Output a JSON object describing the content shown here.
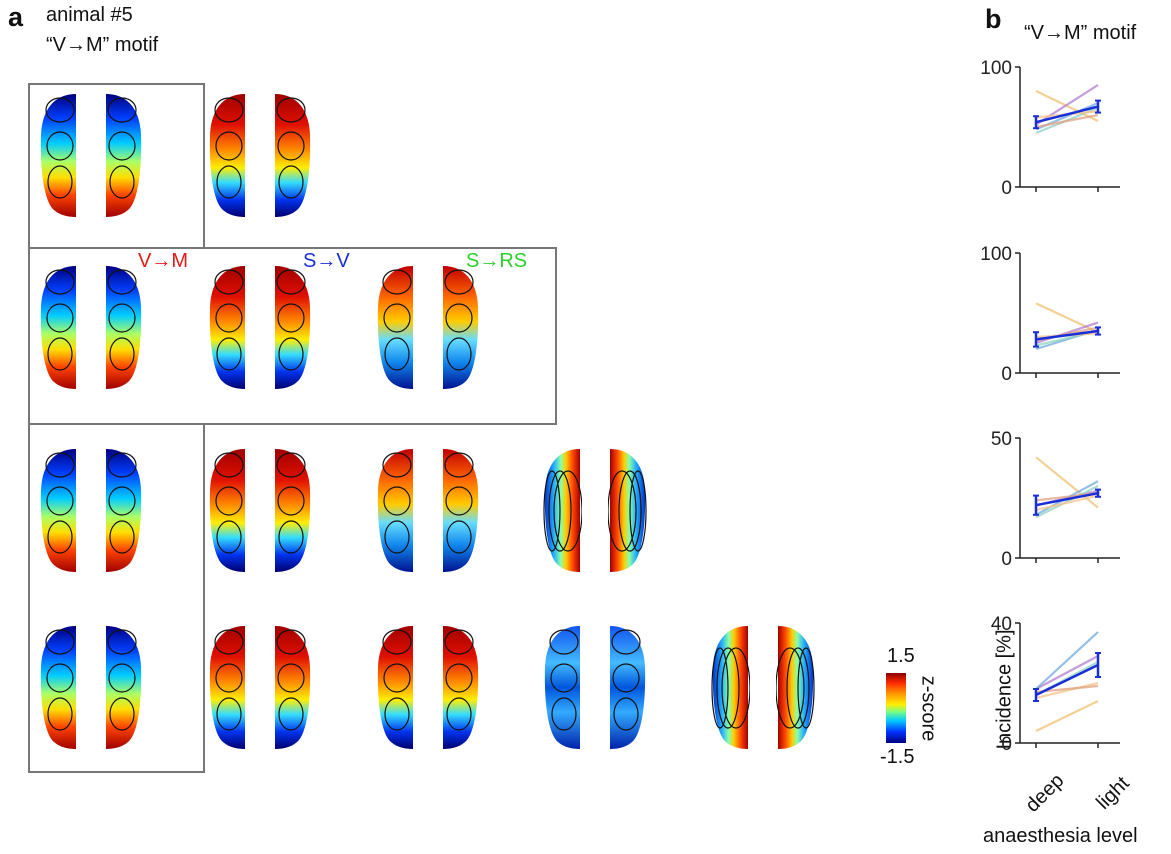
{
  "panel_a": {
    "letter": "a",
    "title_line1": "animal #5",
    "title_line2": "“V→M” motif",
    "row_labels": [
      {
        "text": "V→M",
        "color": "#e31a1c"
      },
      {
        "text": "S→V",
        "color": "#1a2ed8"
      },
      {
        "text": "S→RS",
        "color": "#2bd12b"
      }
    ],
    "rows": [
      {
        "maps": [
          "v2m",
          "s2v_warm"
        ]
      },
      {
        "maps": [
          "v2m",
          "s2v_warm",
          "s2rs"
        ]
      },
      {
        "maps": [
          "v2m",
          "s2v_warm",
          "s2rs",
          "lateral"
        ]
      },
      {
        "maps": [
          "v2m",
          "s2v_warm",
          "s2v_warm",
          "noisy",
          "lateral"
        ]
      }
    ],
    "colorbar": {
      "max_label": "1.5",
      "min_label": "-1.5",
      "title": "z-score",
      "colors": [
        "#8b0000",
        "#ff2a00",
        "#ff9900",
        "#ffee00",
        "#7dff7d",
        "#00ccff",
        "#0033ff",
        "#00007f"
      ]
    }
  },
  "panel_b": {
    "letter": "b",
    "title": "“V→M” motif",
    "ylabel": "Incidence [%]",
    "xlabel": "anaesthesia level",
    "x_categories": [
      "deep",
      "light"
    ]
  },
  "chart_data": [
    {
      "type": "line",
      "x": [
        "deep",
        "light"
      ],
      "ylim": [
        0,
        100
      ],
      "yticks": [
        "0",
        "100"
      ],
      "series": [
        {
          "values": [
            80,
            55
          ],
          "color": "#f0c070"
        },
        {
          "values": [
            52,
            85
          ],
          "color": "#b07ad0"
        },
        {
          "values": [
            48,
            70
          ],
          "color": "#6fa8dc"
        },
        {
          "values": [
            45,
            66
          ],
          "color": "#8fd0c0"
        },
        {
          "values": [
            58,
            63
          ],
          "color": "#f5c38c"
        },
        {
          "values": [
            50,
            60
          ],
          "color": "#e0a080"
        }
      ],
      "mean": {
        "values": [
          54,
          67
        ],
        "error": [
          5,
          5
        ],
        "color": "#1a2ed8"
      }
    },
    {
      "type": "line",
      "x": [
        "deep",
        "light"
      ],
      "ylim": [
        0,
        100
      ],
      "yticks": [
        "0",
        "100"
      ],
      "series": [
        {
          "values": [
            58,
            34
          ],
          "color": "#f0c070"
        },
        {
          "values": [
            25,
            42
          ],
          "color": "#b07ad0"
        },
        {
          "values": [
            20,
            36
          ],
          "color": "#6fa8dc"
        },
        {
          "values": [
            23,
            35
          ],
          "color": "#8fd0c0"
        },
        {
          "values": [
            30,
            33
          ],
          "color": "#f5c38c"
        },
        {
          "values": [
            27,
            38
          ],
          "color": "#e0a080"
        }
      ],
      "mean": {
        "values": [
          28,
          35
        ],
        "error": [
          6,
          3
        ],
        "color": "#1a2ed8"
      }
    },
    {
      "type": "line",
      "x": [
        "deep",
        "light"
      ],
      "ylim": [
        0,
        50
      ],
      "yticks": [
        "0",
        "50"
      ],
      "series": [
        {
          "values": [
            42,
            21
          ],
          "color": "#f0c070"
        },
        {
          "values": [
            22,
            28
          ],
          "color": "#b07ad0"
        },
        {
          "values": [
            18,
            32
          ],
          "color": "#6fa8dc"
        },
        {
          "values": [
            17,
            30
          ],
          "color": "#8fd0c0"
        },
        {
          "values": [
            20,
            26
          ],
          "color": "#f5c38c"
        },
        {
          "values": [
            24,
            27
          ],
          "color": "#e0a080"
        }
      ],
      "mean": {
        "values": [
          22,
          27
        ],
        "error": [
          4,
          1.5
        ],
        "color": "#1a2ed8"
      }
    },
    {
      "type": "line",
      "x": [
        "deep",
        "light"
      ],
      "ylim": [
        0,
        40
      ],
      "yticks": [
        "0",
        "40"
      ],
      "series": [
        {
          "values": [
            4,
            14
          ],
          "color": "#f0c070"
        },
        {
          "values": [
            18,
            29
          ],
          "color": "#b07ad0"
        },
        {
          "values": [
            18,
            37
          ],
          "color": "#6fa8dc"
        },
        {
          "values": [
            16,
            27
          ],
          "color": "#8fd0c0"
        },
        {
          "values": [
            15,
            20
          ],
          "color": "#f5c38c"
        },
        {
          "values": [
            17,
            19
          ],
          "color": "#e0a080"
        }
      ],
      "mean": {
        "values": [
          16,
          26
        ],
        "error": [
          2,
          4
        ],
        "color": "#1a2ed8"
      }
    }
  ]
}
